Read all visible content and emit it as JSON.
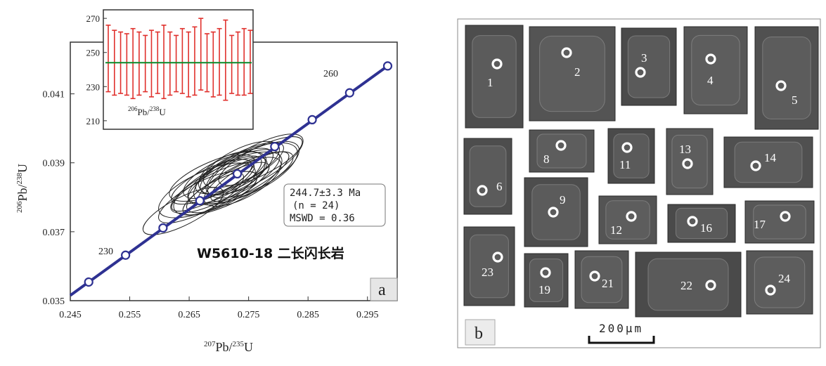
{
  "panel_a": {
    "label": "a",
    "sample_title": "W5610-18  二长闪长岩",
    "result_box": {
      "line1": "244.7±3.3 Ma",
      "line2": "(n = 24)",
      "line3": "MSWD = 0.36"
    },
    "y_axis_label": {
      "sup": "206",
      "main": "Pb/",
      "sup2": "238",
      "main2": "U"
    },
    "x_axis_label": {
      "sup": "207",
      "main": "Pb/",
      "sup2": "235",
      "main2": "U"
    },
    "inset_label": {
      "sup": "206",
      "main": "Pb/",
      "sup2": "238",
      "main2": "U"
    }
  },
  "panel_b": {
    "label": "b",
    "scale_bar_text": "200μm",
    "grains": [
      {
        "number": "1"
      },
      {
        "number": "2"
      },
      {
        "number": "3"
      },
      {
        "number": "4"
      },
      {
        "number": "5"
      },
      {
        "number": "6"
      },
      {
        "number": "8"
      },
      {
        "number": "11"
      },
      {
        "number": "13"
      },
      {
        "number": "14"
      },
      {
        "number": "9"
      },
      {
        "number": "12"
      },
      {
        "number": "16"
      },
      {
        "number": "17"
      },
      {
        "number": "23"
      },
      {
        "number": "19"
      },
      {
        "number": "21"
      },
      {
        "number": "22"
      },
      {
        "number": "24"
      }
    ]
  },
  "colors": {
    "concordia": "#2e3192",
    "ellipse": "#222222",
    "error_bar": "#e0312d",
    "mean_line": "#0a8a2a",
    "grain_bg": "#505050"
  },
  "chart_data": [
    {
      "type": "scatter",
      "subtype": "concordia",
      "xlabel": "207Pb/235U",
      "ylabel": "206Pb/238U",
      "xlim": [
        0.245,
        0.3
      ],
      "ylim": [
        0.035,
        0.0425
      ],
      "x_ticks": [
        "0.245",
        "0.255",
        "0.265",
        "0.275",
        "0.285",
        "0.295"
      ],
      "y_ticks": [
        "0.035",
        "0.037",
        "0.039",
        "0.041"
      ],
      "concordia_age_labels_ma": [
        "230",
        "260"
      ],
      "concordia_points": [
        {
          "x": 0.2481,
          "y": 0.03554
        },
        {
          "x": 0.2543,
          "y": 0.03632
        },
        {
          "x": 0.2606,
          "y": 0.03711
        },
        {
          "x": 0.2668,
          "y": 0.0379
        },
        {
          "x": 0.2731,
          "y": 0.03868
        },
        {
          "x": 0.2794,
          "y": 0.03947
        },
        {
          "x": 0.2857,
          "y": 0.04025
        },
        {
          "x": 0.292,
          "y": 0.04103
        },
        {
          "x": 0.2984,
          "y": 0.04181
        }
      ],
      "ellipses": [
        {
          "x": 0.27,
          "y": 0.03835,
          "rx": 0.009,
          "ry": 0.00045,
          "angle": -27
        },
        {
          "x": 0.2725,
          "y": 0.0386,
          "rx": 0.0085,
          "ry": 0.0005,
          "angle": -26
        },
        {
          "x": 0.269,
          "y": 0.0383,
          "rx": 0.0078,
          "ry": 0.00035,
          "angle": -28
        },
        {
          "x": 0.2745,
          "y": 0.0387,
          "rx": 0.0095,
          "ry": 0.0006,
          "angle": -25
        },
        {
          "x": 0.271,
          "y": 0.0385,
          "rx": 0.007,
          "ry": 0.0004,
          "angle": -30
        },
        {
          "x": 0.268,
          "y": 0.0382,
          "rx": 0.0088,
          "ry": 0.00055,
          "angle": -24
        },
        {
          "x": 0.2735,
          "y": 0.03885,
          "rx": 0.0082,
          "ry": 0.00042,
          "angle": -27
        },
        {
          "x": 0.276,
          "y": 0.03895,
          "rx": 0.0092,
          "ry": 0.0005,
          "angle": -29
        },
        {
          "x": 0.2705,
          "y": 0.03815,
          "rx": 0.0065,
          "ry": 0.00038,
          "angle": -26
        },
        {
          "x": 0.274,
          "y": 0.03845,
          "rx": 0.0072,
          "ry": 0.00046,
          "angle": -28
        },
        {
          "x": 0.277,
          "y": 0.03905,
          "rx": 0.0078,
          "ry": 0.0004,
          "angle": -27
        },
        {
          "x": 0.267,
          "y": 0.038,
          "rx": 0.008,
          "ry": 0.00042,
          "angle": -28
        },
        {
          "x": 0.2722,
          "y": 0.0387,
          "rx": 0.006,
          "ry": 0.00052,
          "angle": -24
        },
        {
          "x": 0.2698,
          "y": 0.0386,
          "rx": 0.0087,
          "ry": 0.00048,
          "angle": -22
        },
        {
          "x": 0.2752,
          "y": 0.0386,
          "rx": 0.0075,
          "ry": 0.00036,
          "angle": -30
        },
        {
          "x": 0.2715,
          "y": 0.0384,
          "rx": 0.01,
          "ry": 0.00058,
          "angle": -26
        },
        {
          "x": 0.273,
          "y": 0.03875,
          "rx": 0.0068,
          "ry": 0.00044,
          "angle": -28
        },
        {
          "x": 0.2688,
          "y": 0.03845,
          "rx": 0.0074,
          "ry": 0.0004,
          "angle": -25
        },
        {
          "x": 0.2758,
          "y": 0.0388,
          "rx": 0.0085,
          "ry": 0.00054,
          "angle": -27
        },
        {
          "x": 0.2712,
          "y": 0.03825,
          "rx": 0.0082,
          "ry": 0.00038,
          "angle": -29
        },
        {
          "x": 0.2738,
          "y": 0.03895,
          "rx": 0.007,
          "ry": 0.00046,
          "angle": -26
        },
        {
          "x": 0.27,
          "y": 0.0386,
          "rx": 0.0066,
          "ry": 0.00042,
          "angle": -27
        },
        {
          "x": 0.2745,
          "y": 0.03855,
          "rx": 0.0088,
          "ry": 0.00044,
          "angle": -26
        },
        {
          "x": 0.264,
          "y": 0.0376,
          "rx": 0.0075,
          "ry": 0.0004,
          "angle": -27
        }
      ],
      "result": "244.7±3.3 Ma (n = 24) MSWD = 0.36"
    },
    {
      "type": "scatter",
      "subtype": "error_bar_plot",
      "ylabel": "206Pb/238U",
      "ylim": [
        205,
        275
      ],
      "y_ticks": [
        "210",
        "230",
        "250",
        "270"
      ],
      "mean": 244,
      "spots": [
        {
          "low": 227,
          "high": 266
        },
        {
          "low": 225,
          "high": 263
        },
        {
          "low": 226,
          "high": 262
        },
        {
          "low": 225,
          "high": 261
        },
        {
          "low": 223,
          "high": 264
        },
        {
          "low": 225,
          "high": 262
        },
        {
          "low": 227,
          "high": 260
        },
        {
          "low": 224,
          "high": 263
        },
        {
          "low": 226,
          "high": 262
        },
        {
          "low": 223,
          "high": 266
        },
        {
          "low": 225,
          "high": 262
        },
        {
          "low": 227,
          "high": 260
        },
        {
          "low": 226,
          "high": 264
        },
        {
          "low": 224,
          "high": 262
        },
        {
          "low": 225,
          "high": 265
        },
        {
          "low": 228,
          "high": 270
        },
        {
          "low": 227,
          "high": 261
        },
        {
          "low": 224,
          "high": 262
        },
        {
          "low": 225,
          "high": 264
        },
        {
          "low": 222,
          "high": 269
        },
        {
          "low": 226,
          "high": 260
        },
        {
          "low": 225,
          "high": 262
        },
        {
          "low": 225,
          "high": 264
        },
        {
          "low": 226,
          "high": 263
        }
      ]
    }
  ]
}
